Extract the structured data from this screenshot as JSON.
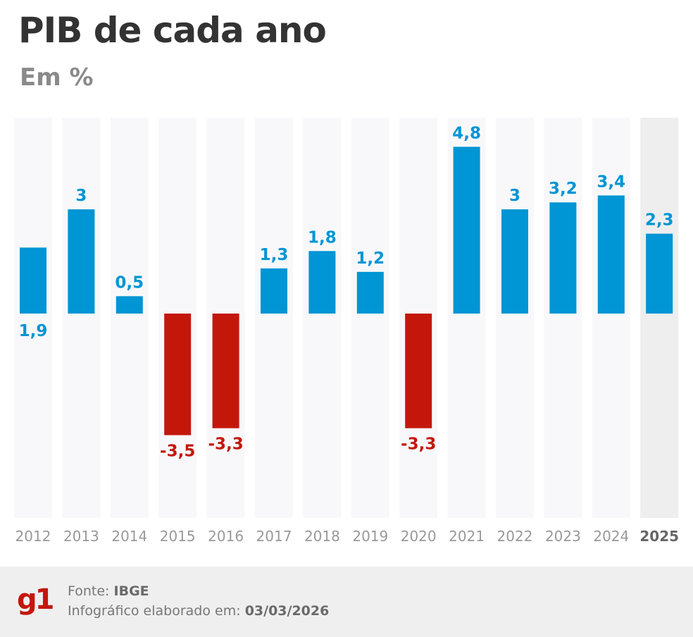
{
  "chart_data": {
    "type": "bar",
    "title": "PIB de cada ano",
    "subtitle": "Em %",
    "categories": [
      "2012",
      "2013",
      "2014",
      "2015",
      "2016",
      "2017",
      "2018",
      "2019",
      "2020",
      "2021",
      "2022",
      "2023",
      "2024",
      "2025"
    ],
    "values": [
      1.9,
      3,
      0.5,
      -3.5,
      -3.3,
      1.3,
      1.8,
      1.2,
      -3.3,
      4.8,
      3,
      3.2,
      3.4,
      2.3
    ],
    "data_labels": [
      "1,9",
      "3",
      "0,5",
      "-3,5",
      "-3,3",
      "1,3",
      "1,8",
      "1,2",
      "-3,3",
      "4,8",
      "3",
      "3,2",
      "3,4",
      "2,3"
    ],
    "highlighted_category": "2025",
    "ylim": [
      -5.8,
      5.7
    ],
    "grid": false,
    "colors": {
      "positive": "#0095d4",
      "negative": "#c4170c",
      "column_bg": "#f8f8fa",
      "highlight_bg": "#eeeeee"
    }
  },
  "footer": {
    "logo": "g1",
    "source_label": "Fonte:",
    "source_value": "IBGE",
    "date_label": "Infográfico elaborado em:",
    "date_value": "03/03/2026"
  }
}
